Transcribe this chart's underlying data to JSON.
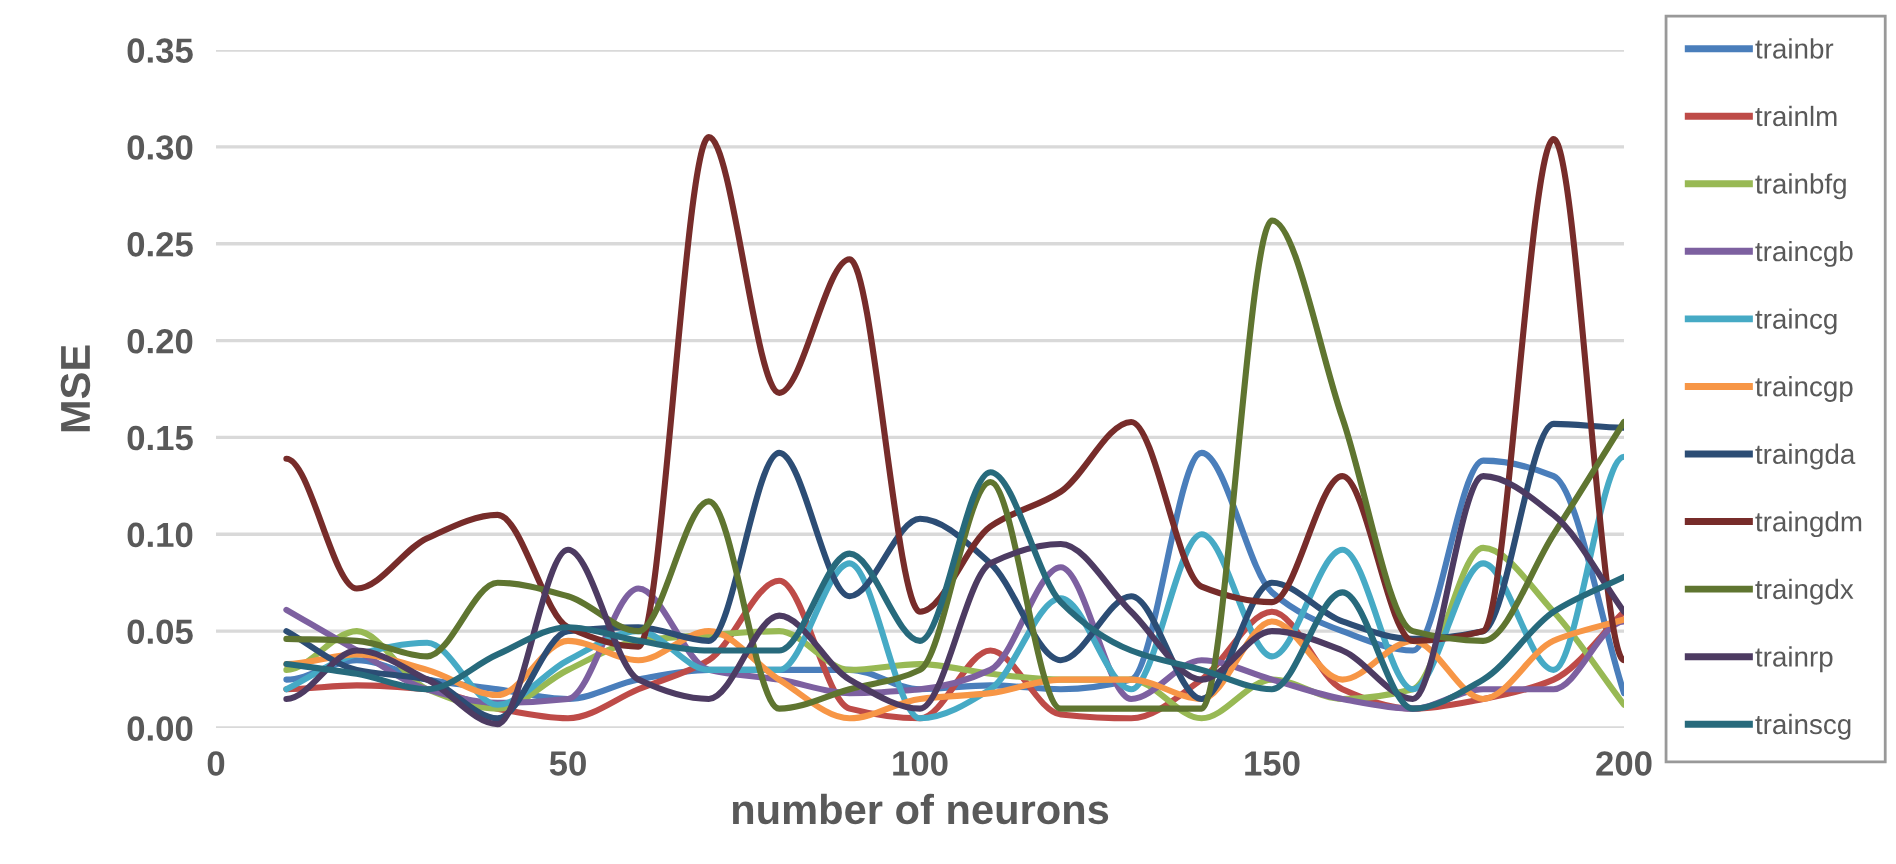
{
  "chart_data": {
    "type": "line",
    "xlabel": "number of neurons",
    "ylabel": "MSE",
    "x": [
      10,
      20,
      30,
      40,
      50,
      60,
      70,
      80,
      90,
      100,
      110,
      120,
      130,
      140,
      150,
      160,
      170,
      180,
      190,
      200
    ],
    "xlim": [
      0,
      200
    ],
    "xticks": [
      0,
      50,
      100,
      150,
      200
    ],
    "ylim": [
      0,
      0.35
    ],
    "yticks": [
      {
        "value": 0,
        "label": "0.00"
      },
      {
        "value": 0.05,
        "label": "0.05"
      },
      {
        "value": 0.1,
        "label": "0.10"
      },
      {
        "value": 0.15,
        "label": "0.15"
      },
      {
        "value": 0.2,
        "label": "0.20"
      },
      {
        "value": 0.25,
        "label": "0.25"
      },
      {
        "value": 0.3,
        "label": "0.30"
      },
      {
        "value": 0.35,
        "label": "0.35"
      }
    ],
    "grid": "y",
    "legend": "right",
    "marker": "none",
    "line_style": "solid",
    "series": [
      {
        "name": "trainbr",
        "color": "#4a7ebb",
        "values": [
          0.025,
          0.035,
          0.025,
          0.02,
          0.015,
          0.025,
          0.03,
          0.03,
          0.03,
          0.02,
          0.022,
          0.02,
          0.025,
          0.142,
          0.07,
          0.05,
          0.04,
          0.138,
          0.13,
          0.018
        ]
      },
      {
        "name": "trainlm",
        "color": "#be4b48",
        "values": [
          0.02,
          0.022,
          0.02,
          0.01,
          0.005,
          0.02,
          0.035,
          0.076,
          0.01,
          0.005,
          0.04,
          0.007,
          0.005,
          0.025,
          0.06,
          0.02,
          0.01,
          0.015,
          0.025,
          0.06
        ]
      },
      {
        "name": "trainbfg",
        "color": "#98b954",
        "values": [
          0.03,
          0.05,
          0.02,
          0.01,
          0.03,
          0.045,
          0.048,
          0.05,
          0.03,
          0.033,
          0.028,
          0.025,
          0.025,
          0.005,
          0.025,
          0.015,
          0.02,
          0.093,
          0.06,
          0.012
        ]
      },
      {
        "name": "traincgb",
        "color": "#7d60a0",
        "values": [
          0.061,
          0.04,
          0.02,
          0.013,
          0.015,
          0.072,
          0.03,
          0.025,
          0.018,
          0.02,
          0.03,
          0.083,
          0.015,
          0.035,
          0.025,
          0.015,
          0.01,
          0.02,
          0.02,
          0.055
        ]
      },
      {
        "name": "traincg",
        "color": "#46aac5",
        "values": [
          0.02,
          0.038,
          0.044,
          0.012,
          0.035,
          0.05,
          0.03,
          0.03,
          0.085,
          0.005,
          0.02,
          0.067,
          0.02,
          0.1,
          0.037,
          0.092,
          0.02,
          0.085,
          0.03,
          0.14
        ]
      },
      {
        "name": "traincgp",
        "color": "#f79646",
        "values": [
          0.033,
          0.038,
          0.03,
          0.017,
          0.045,
          0.035,
          0.05,
          0.025,
          0.005,
          0.015,
          0.018,
          0.025,
          0.025,
          0.015,
          0.055,
          0.025,
          0.045,
          0.015,
          0.045,
          0.056
        ]
      },
      {
        "name": "traingda",
        "color": "#2c4d75",
        "values": [
          0.05,
          0.03,
          0.025,
          0.005,
          0.05,
          0.052,
          0.045,
          0.142,
          0.068,
          0.108,
          0.085,
          0.035,
          0.068,
          0.015,
          0.075,
          0.055,
          0.046,
          0.05,
          0.157,
          0.155
        ]
      },
      {
        "name": "traingdm",
        "color": "#772c2a",
        "values": [
          0.139,
          0.072,
          0.098,
          0.11,
          0.052,
          0.042,
          0.305,
          0.173,
          0.242,
          0.06,
          0.104,
          0.122,
          0.158,
          0.073,
          0.065,
          0.13,
          0.045,
          0.05,
          0.304,
          0.035
        ]
      },
      {
        "name": "traingdx",
        "color": "#5f7530",
        "values": [
          0.046,
          0.045,
          0.037,
          0.075,
          0.068,
          0.05,
          0.117,
          0.01,
          0.02,
          0.03,
          0.127,
          0.01,
          0.01,
          0.01,
          0.262,
          0.16,
          0.05,
          0.045,
          0.1,
          0.158
        ]
      },
      {
        "name": "trainrp",
        "color": "#4d3b62",
        "values": [
          0.015,
          0.04,
          0.025,
          0.002,
          0.092,
          0.025,
          0.015,
          0.058,
          0.025,
          0.01,
          0.085,
          0.095,
          0.06,
          0.025,
          0.05,
          0.04,
          0.015,
          0.13,
          0.11,
          0.06
        ]
      },
      {
        "name": "trainscg",
        "color": "#276a7c",
        "values": [
          0.033,
          0.028,
          0.02,
          0.038,
          0.052,
          0.045,
          0.04,
          0.04,
          0.09,
          0.045,
          0.132,
          0.065,
          0.04,
          0.03,
          0.02,
          0.07,
          0.01,
          0.025,
          0.06,
          0.078
        ]
      }
    ]
  }
}
